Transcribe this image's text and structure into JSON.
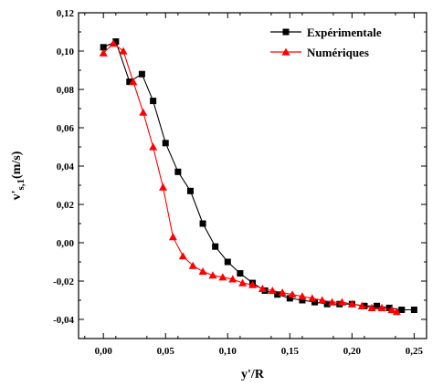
{
  "chart_data": {
    "type": "line",
    "xlabel": "y'/R",
    "ylabel_main": "v'",
    "ylabel_sub": "s,1",
    "ylabel_unit": "(m/s)",
    "xlim": [
      -0.02,
      0.26
    ],
    "ylim": [
      -0.05,
      0.12
    ],
    "xticks": [
      0.0,
      0.05,
      0.1,
      0.15,
      0.2,
      0.25
    ],
    "xtick_labels": [
      "0,00",
      "0,05",
      "0,10",
      "0,15",
      "0,20",
      "0,25"
    ],
    "yticks": [
      -0.04,
      -0.02,
      0.0,
      0.02,
      0.04,
      0.06,
      0.08,
      0.1,
      0.12
    ],
    "ytick_labels": [
      "-0,04",
      "-0,02",
      "0,00",
      "0,02",
      "0,04",
      "0,06",
      "0,08",
      "0,10",
      "0,12"
    ],
    "legend_position": "top-right",
    "series": [
      {
        "name": "Expérimentale",
        "color": "#000000",
        "marker": "square",
        "x": [
          0.0,
          0.01,
          0.021,
          0.031,
          0.04,
          0.05,
          0.06,
          0.07,
          0.08,
          0.09,
          0.1,
          0.11,
          0.12,
          0.13,
          0.14,
          0.15,
          0.16,
          0.17,
          0.18,
          0.19,
          0.2,
          0.21,
          0.22,
          0.23,
          0.24,
          0.25
        ],
        "y": [
          0.102,
          0.105,
          0.084,
          0.088,
          0.074,
          0.052,
          0.037,
          0.027,
          0.01,
          -0.002,
          -0.01,
          -0.016,
          -0.021,
          -0.025,
          -0.027,
          -0.029,
          -0.03,
          -0.031,
          -0.032,
          -0.032,
          -0.032,
          -0.033,
          -0.033,
          -0.034,
          -0.035,
          -0.035
        ]
      },
      {
        "name": "Numériques",
        "color": "#ff0000",
        "marker": "triangle",
        "x": [
          0.0,
          0.008,
          0.016,
          0.024,
          0.032,
          0.04,
          0.048,
          0.056,
          0.064,
          0.072,
          0.08,
          0.088,
          0.096,
          0.104,
          0.112,
          0.12,
          0.128,
          0.136,
          0.144,
          0.152,
          0.16,
          0.168,
          0.176,
          0.184,
          0.192,
          0.2,
          0.208,
          0.216,
          0.224,
          0.232,
          0.236
        ],
        "y": [
          0.099,
          0.104,
          0.1,
          0.084,
          0.068,
          0.05,
          0.029,
          0.003,
          -0.007,
          -0.012,
          -0.015,
          -0.017,
          -0.018,
          -0.019,
          -0.021,
          -0.022,
          -0.024,
          -0.025,
          -0.026,
          -0.027,
          -0.028,
          -0.029,
          -0.03,
          -0.031,
          -0.031,
          -0.032,
          -0.033,
          -0.034,
          -0.034,
          -0.035,
          -0.036
        ]
      }
    ]
  }
}
